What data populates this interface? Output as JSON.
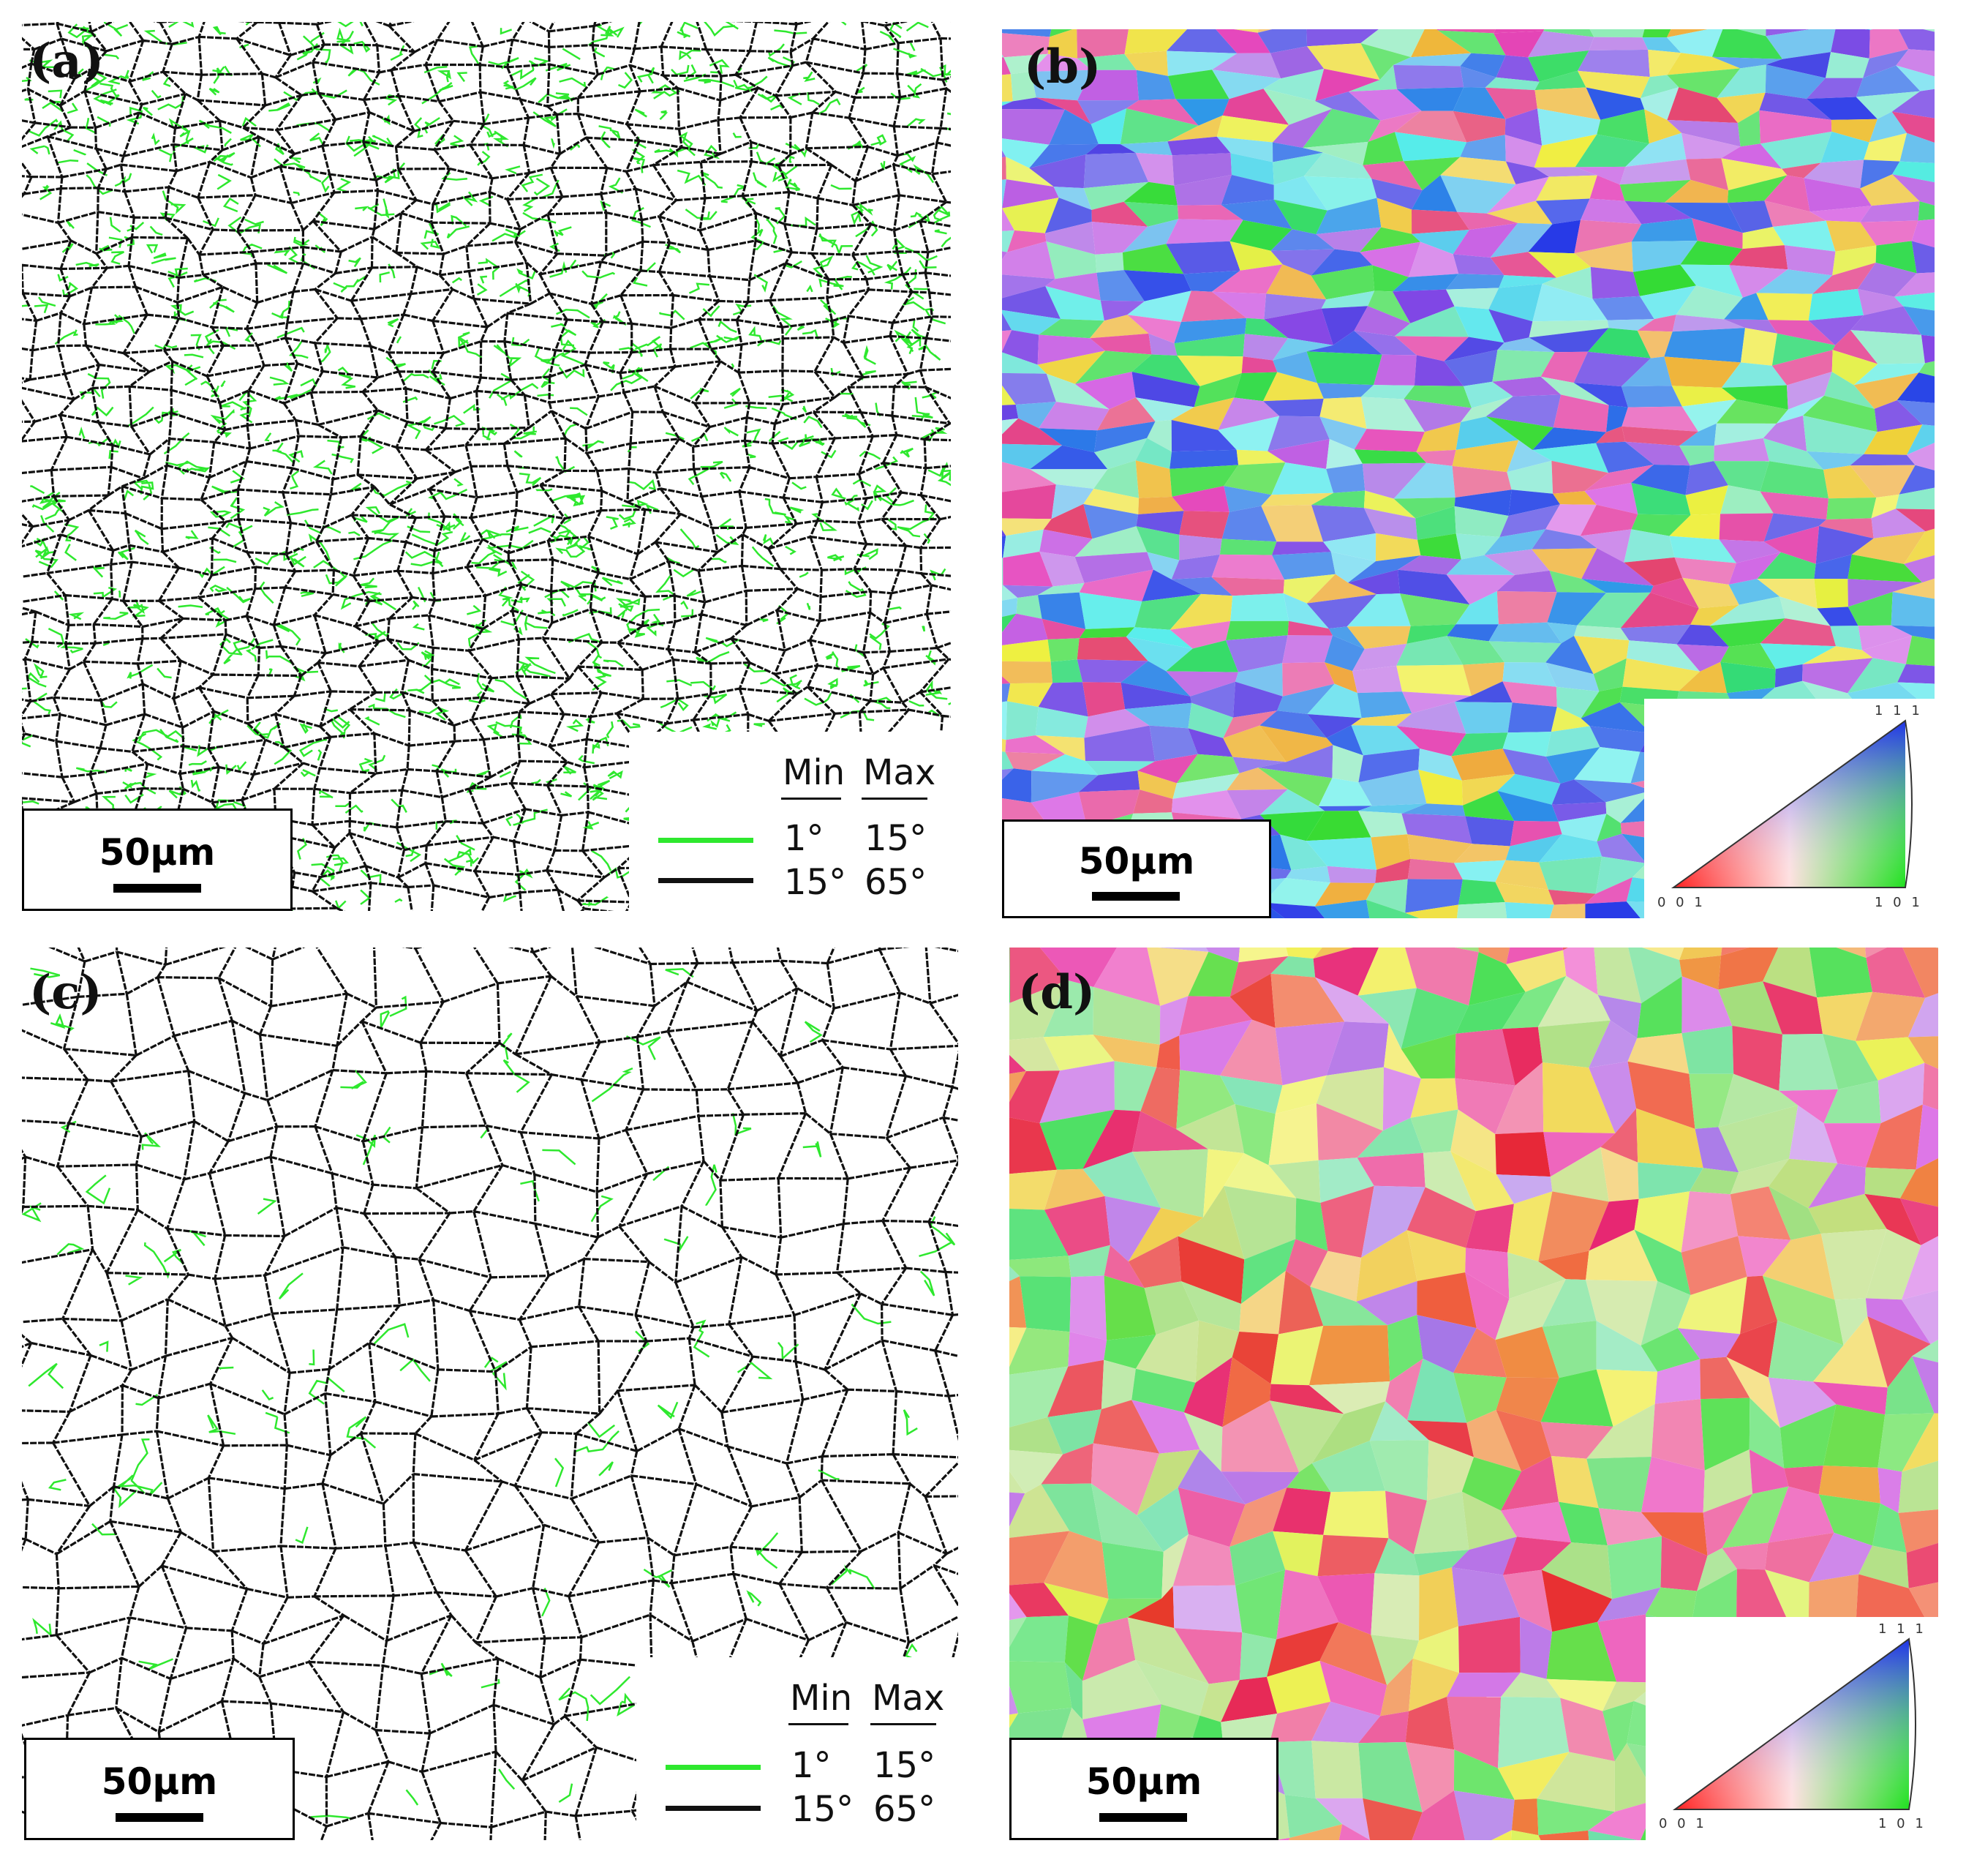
{
  "panels": [
    {
      "label": "(a)",
      "scale_text": "50µm",
      "type": "grain-boundary-map"
    },
    {
      "label": "(b)",
      "scale_text": "50µm",
      "type": "orientation-map"
    },
    {
      "label": "(c)",
      "scale_text": "50µm",
      "type": "grain-boundary-map"
    },
    {
      "label": "(d)",
      "scale_text": "50µm",
      "type": "orientation-map"
    }
  ],
  "boundary_legend": {
    "min_header": "Min",
    "max_header": "Max",
    "rows": [
      {
        "min": "1°",
        "max": "15°",
        "color": "#2ee82e"
      },
      {
        "min": "15°",
        "max": "65°",
        "color": "#111111"
      }
    ]
  },
  "ipf_key": {
    "top": "1 1 1",
    "bottom_left": "0 0 1",
    "bottom_right": "1 0 1"
  },
  "colors": {
    "low_angle_boundary": "#2ee82e",
    "high_angle_boundary": "#111111"
  }
}
